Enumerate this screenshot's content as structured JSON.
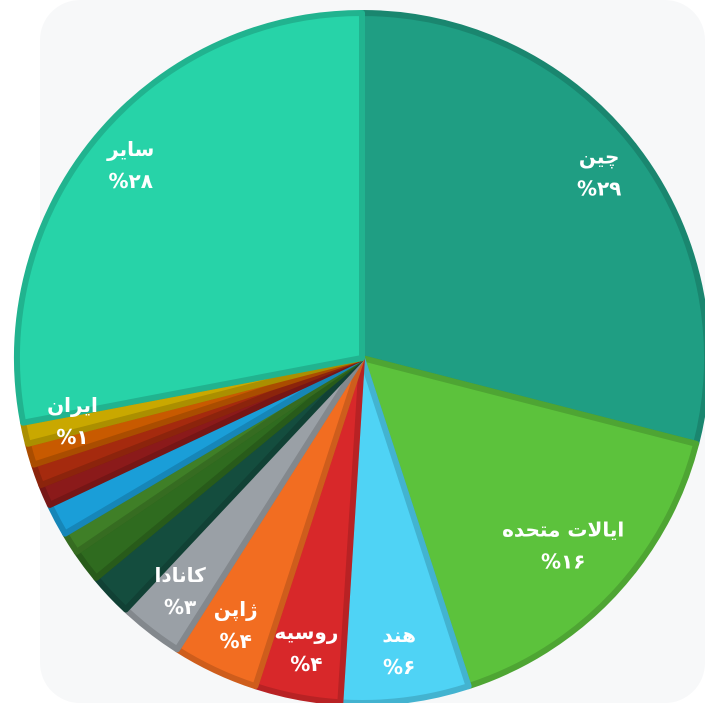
{
  "chart_data": {
    "type": "pie",
    "categories": [
      "چین",
      "ایالات متحده",
      "هند",
      "روسیه",
      "ژاپن",
      "کانادا",
      null,
      null,
      null,
      null,
      null,
      null,
      null,
      "ایران",
      "سایر"
    ],
    "values": [
      29,
      16,
      6,
      4,
      4,
      3,
      2,
      1.5,
      1,
      1.5,
      1,
      1,
      1,
      1,
      28
    ],
    "value_labels": [
      "%۲۹",
      "%۱۶",
      "%۶",
      "%۴",
      "%۴",
      "%۳",
      null,
      null,
      null,
      null,
      null,
      null,
      null,
      "%۱",
      "%۲۸"
    ],
    "colors": [
      "#1f9e83",
      "#5cc23c",
      "#4fd3f5",
      "#d8282a",
      "#f26d21",
      "#9aa0a6",
      "#144d3e",
      "#2f6b1f",
      "#3f7f27",
      "#1a9ed8",
      "#8b1a1a",
      "#a52a0e",
      "#c85a00",
      "#c9a800",
      "#27d3a8"
    ]
  }
}
